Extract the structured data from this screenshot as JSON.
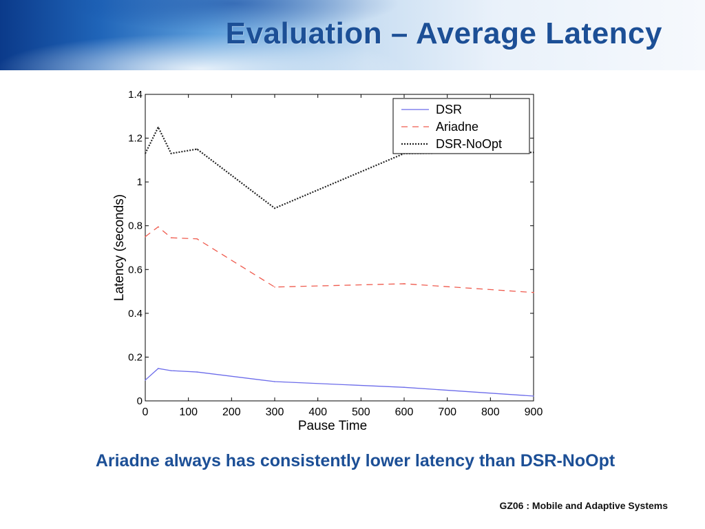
{
  "slide": {
    "title": "Evaluation – Average Latency",
    "caption": "Ariadne always has consistently lower latency than DSR-NoOpt",
    "footer": "GZ06 : Mobile and Adaptive Systems"
  },
  "chart_data": {
    "type": "line",
    "title": "",
    "xlabel": "Pause Time",
    "ylabel": "Latency (seconds)",
    "xlim": [
      0,
      900
    ],
    "ylim": [
      0,
      1.4
    ],
    "xticks": [
      0,
      100,
      200,
      300,
      400,
      500,
      600,
      700,
      800,
      900
    ],
    "yticks": [
      0,
      0.2,
      0.4,
      0.6,
      0.8,
      1,
      1.2,
      1.4
    ],
    "ytick_labels": [
      "0",
      "0.2",
      "0.4",
      "0.6",
      "0.8",
      "1",
      "1.2",
      "1.4"
    ],
    "grid": false,
    "legend_position": "top-right",
    "series": [
      {
        "name": "DSR",
        "color": "#6b6bea",
        "style": "solid",
        "x": [
          0,
          30,
          60,
          120,
          300,
          600,
          900
        ],
        "values": [
          0.095,
          0.148,
          0.138,
          0.132,
          0.088,
          0.062,
          0.022
        ]
      },
      {
        "name": "Ariadne",
        "color": "#ef5a4d",
        "style": "dashed",
        "x": [
          0,
          30,
          60,
          120,
          300,
          600,
          900
        ],
        "values": [
          0.75,
          0.795,
          0.745,
          0.74,
          0.52,
          0.535,
          0.495
        ]
      },
      {
        "name": "DSR-NoOpt",
        "color": "#222222",
        "style": "dotted",
        "x": [
          0,
          30,
          60,
          120,
          300,
          600,
          900
        ],
        "values": [
          1.13,
          1.25,
          1.13,
          1.15,
          0.88,
          1.13,
          1.135
        ]
      }
    ]
  }
}
